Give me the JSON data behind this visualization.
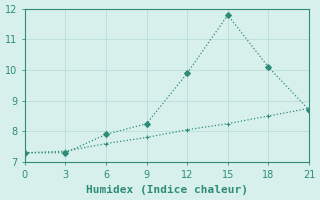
{
  "xlabel": "Humidex (Indice chaleur)",
  "line1_x": [
    0,
    3,
    6,
    9,
    12,
    15,
    18,
    21
  ],
  "line1_y": [
    7.3,
    7.3,
    7.9,
    8.25,
    9.9,
    11.8,
    10.1,
    8.7
  ],
  "line2_x": [
    0,
    3,
    6,
    9,
    12,
    15,
    18,
    21
  ],
  "line2_y": [
    7.3,
    7.35,
    7.6,
    7.8,
    8.05,
    8.25,
    8.5,
    8.75
  ],
  "line_color": "#2e8b7a",
  "bg_color": "#d8f0ec",
  "grid_color": "#b8ddd8",
  "spine_color": "#2e8b7a",
  "tick_color": "#2e8b7a",
  "xlim": [
    0,
    21
  ],
  "ylim": [
    7,
    12
  ],
  "xticks": [
    0,
    3,
    6,
    9,
    12,
    15,
    18,
    21
  ],
  "yticks": [
    7,
    8,
    9,
    10,
    11,
    12
  ],
  "tick_fontsize": 7,
  "xlabel_fontsize": 8
}
